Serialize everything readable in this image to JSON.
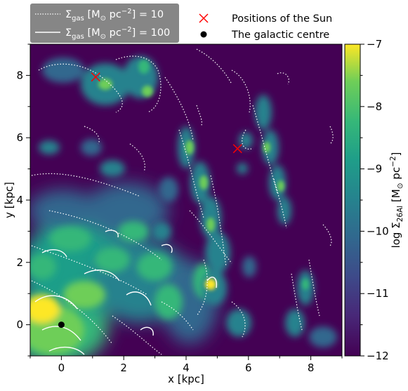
{
  "chart_data": {
    "type": "heatmap",
    "xlabel": "x [kpc]",
    "ylabel": "y [kpc]",
    "xlim": [
      -1,
      9
    ],
    "ylim": [
      -1,
      9
    ],
    "x_ticks": [
      0,
      2,
      4,
      6,
      8
    ],
    "y_ticks": [
      0,
      2,
      4,
      6,
      8
    ],
    "colorbar": {
      "label": "log Σ26Al [M⊙ pc−2]",
      "label_main": "log Σ",
      "label_sub": "26Al",
      "label_unit_open": " [M",
      "label_sun": "⊙",
      "label_unit_pc": " pc",
      "label_exp": "−2",
      "label_close": "]",
      "range": [
        -12,
        -7
      ],
      "ticks": [
        -12,
        -11,
        -10,
        -9,
        -8,
        -7
      ],
      "tick_labels": [
        "−12",
        "−11",
        "−10",
        "−9",
        "−8",
        "−7"
      ],
      "colormap": "viridis"
    },
    "background_color": "#440154",
    "contours": [
      {
        "level": 10,
        "style": "dotted",
        "color": "#ffffff"
      },
      {
        "level": 100,
        "style": "solid",
        "color": "#ffffff"
      }
    ],
    "markers": {
      "sun_positions": [
        [
          1.1,
          7.95
        ],
        [
          5.65,
          5.65
        ]
      ],
      "galactic_centre": [
        0,
        0
      ]
    },
    "legend_left": {
      "placement": "top-left, above plot",
      "entries": [
        {
          "style": "dotted",
          "prefix": "Σ",
          "sub": "gas",
          "unit_open": " [M",
          "sun": "⊙",
          "unit_pc": " pc",
          "exp": "−2",
          "tail": "] = 10"
        },
        {
          "style": "solid",
          "prefix": "Σ",
          "sub": "gas",
          "unit_open": " [M",
          "sun": "⊙",
          "unit_pc": " pc",
          "exp": "−2",
          "tail": "] = 100"
        }
      ]
    },
    "legend_right": {
      "placement": "top-right, above plot",
      "entries": [
        {
          "marker": "x",
          "color": "#ff0000",
          "label": "Positions of the Sun"
        },
        {
          "marker": "dot",
          "color": "#000000",
          "label": "The galactic centre"
        }
      ]
    }
  }
}
